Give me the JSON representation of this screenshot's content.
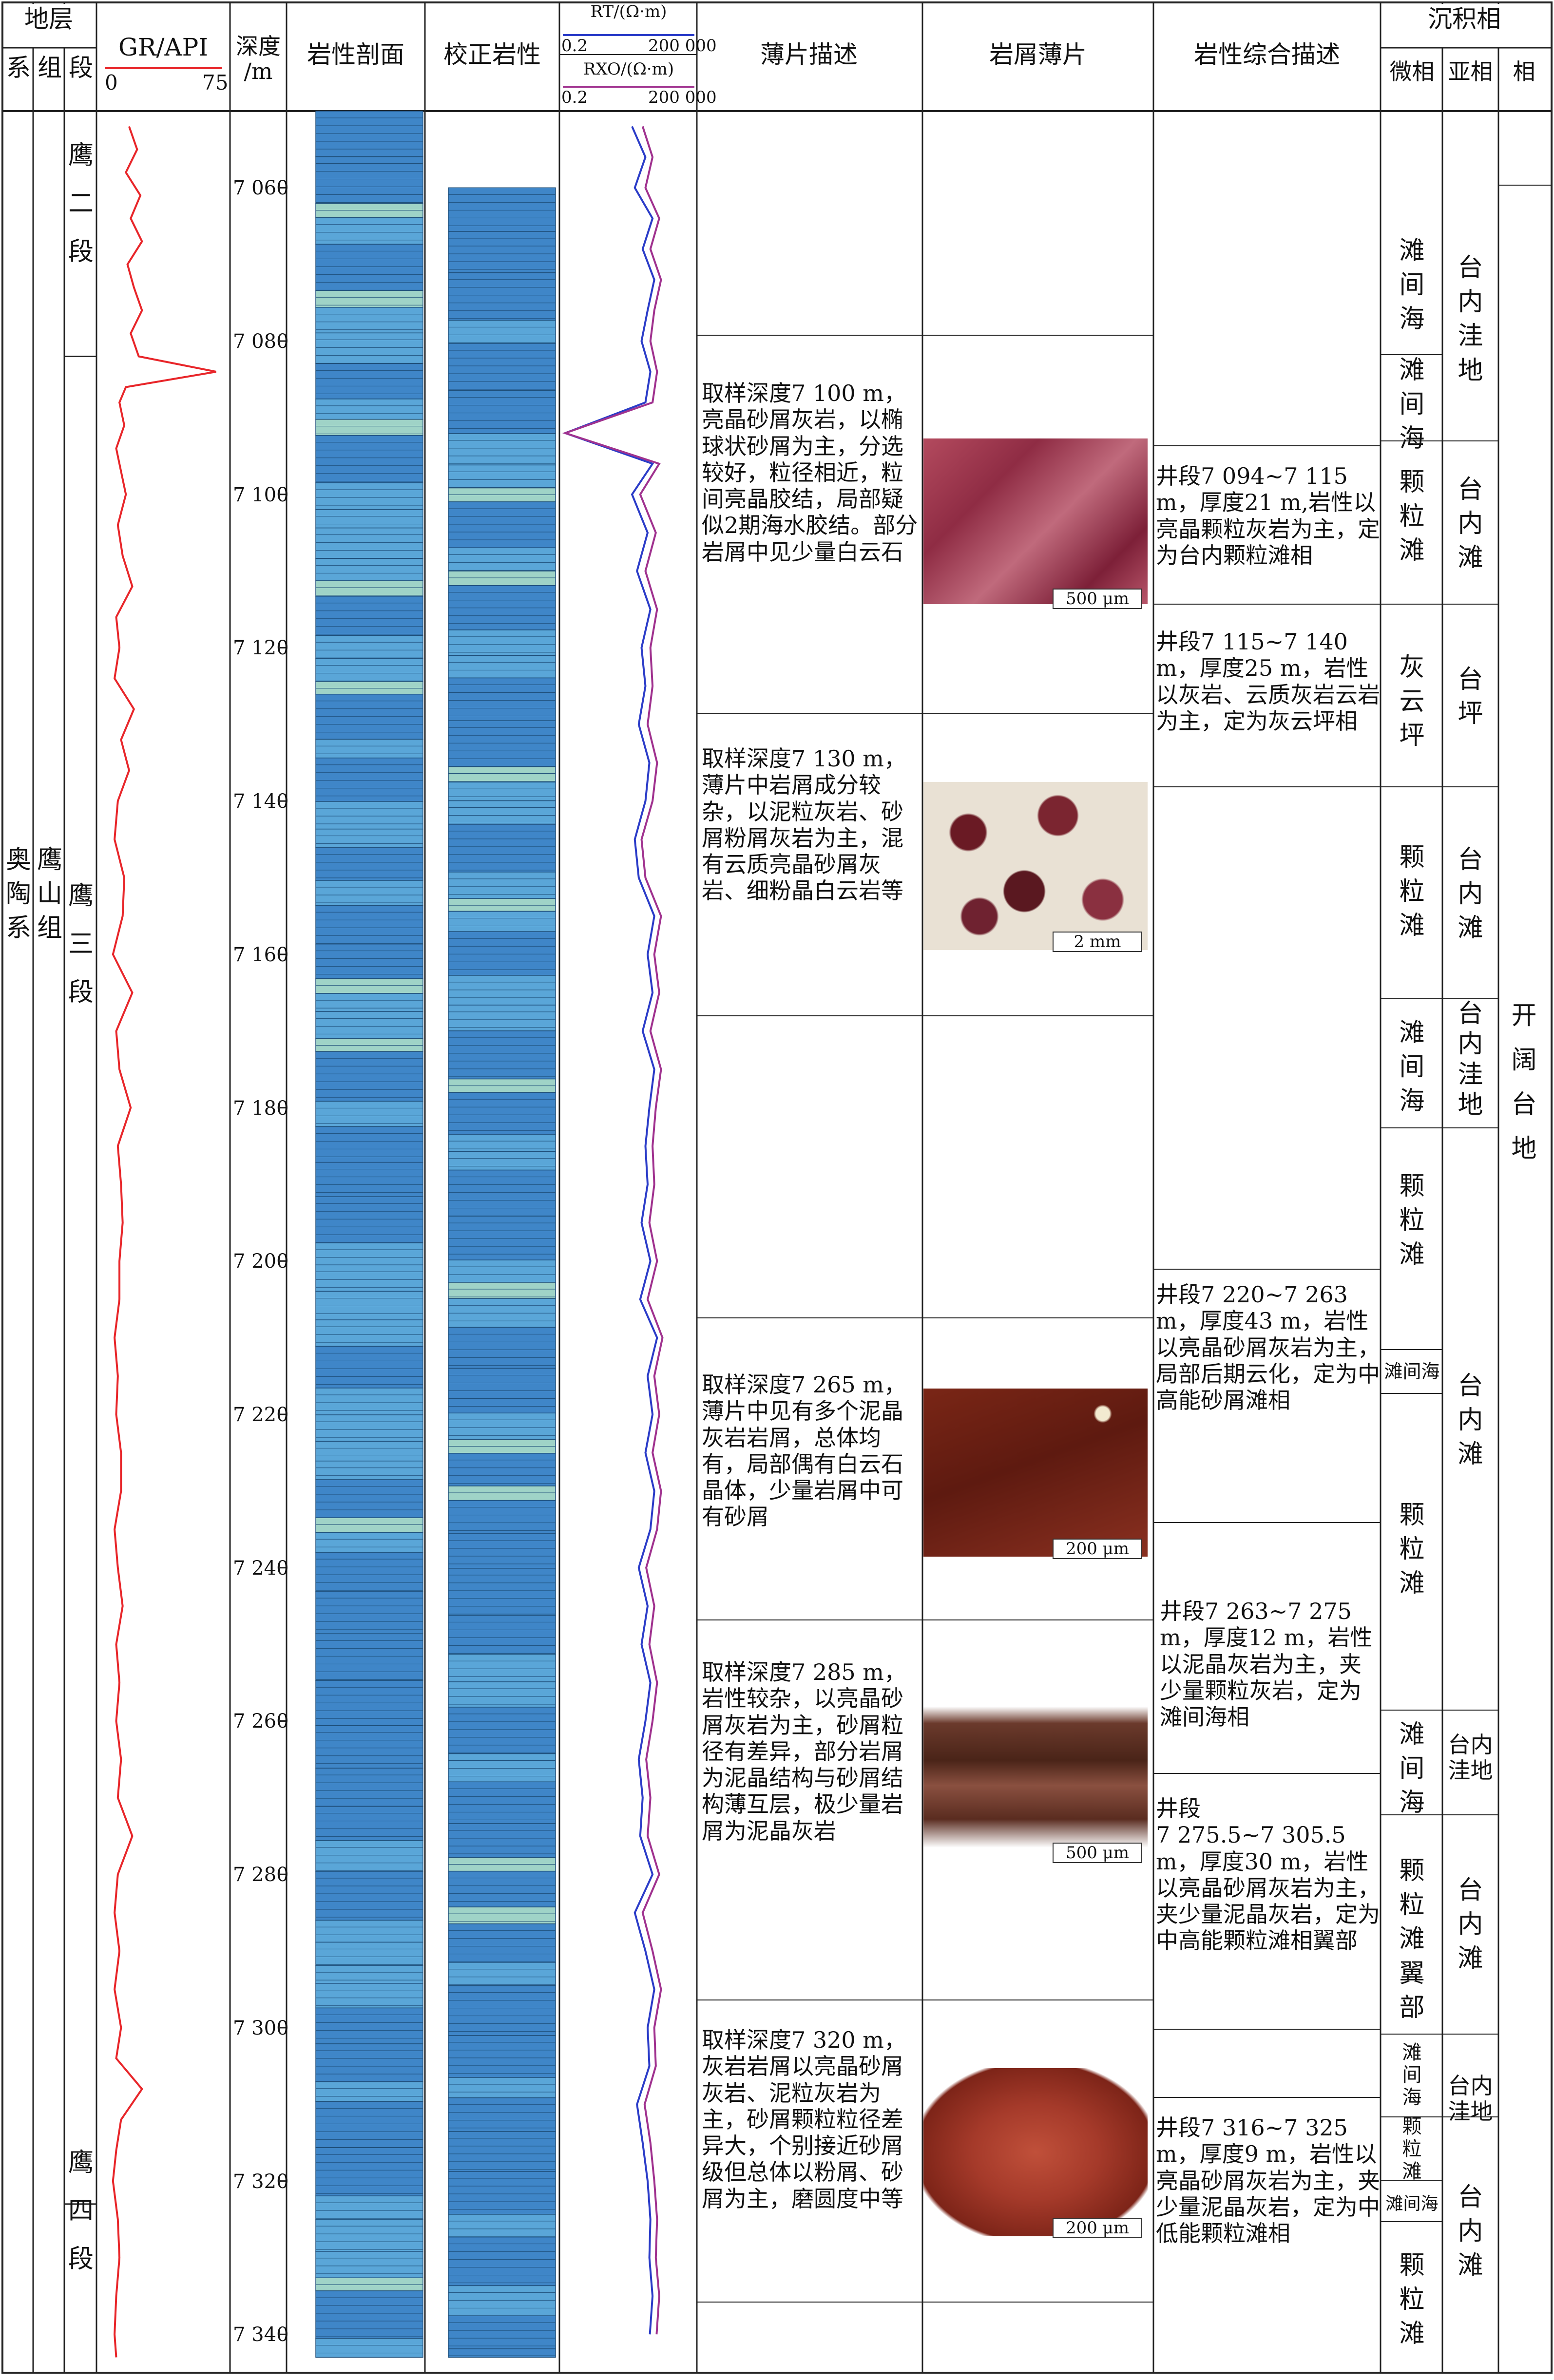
{
  "header": {
    "stratum": "地层",
    "system": "系",
    "formation": "组",
    "member": "段",
    "gr_title": "GR/API",
    "gr_min": "0",
    "gr_max": "75",
    "depth": "深度\n/m",
    "lith_profile": "岩性剖面",
    "corrected_lith": "校正岩性",
    "rt_title": "RT/(Ω·m)",
    "rt_min": "0.2",
    "rt_max": "200 000",
    "rxo_title": "RXO/(Ω·m)",
    "rxo_min": "0.2",
    "rxo_max": "200 000",
    "thin_desc": "薄片描述",
    "cuttings": "岩屑薄片",
    "lith_desc": "岩性综合描述",
    "facies_group": "沉积相",
    "microfacies": "微相",
    "subfacies": "亚相",
    "facies": "相"
  },
  "strata": {
    "system": "奥\n陶\n系",
    "formation": "鹰\n山\n组",
    "members": [
      "鹰\n二\n段",
      "鹰\n三\n段",
      "鹰\n四\n段"
    ]
  },
  "colors": {
    "gr": "#e8262a",
    "rt": "#2b3cc8",
    "rxo": "#a0328f",
    "limestone": "#5aa6d8",
    "limestone_dark": "#3f86c8",
    "dolomitic": "#9fd3c7",
    "grid": "#222222"
  },
  "chart_data": {
    "type": "line",
    "depth_axis": {
      "unit": "m",
      "range": [
        7050,
        7345
      ],
      "ticks": [
        7060,
        7080,
        7100,
        7120,
        7140,
        7160,
        7180,
        7200,
        7220,
        7240,
        7260,
        7280,
        7300,
        7320,
        7340
      ],
      "tick_labels": [
        "7 060",
        "7 080",
        "7 100",
        "7 120",
        "7 140",
        "7 160",
        "7 180",
        "7 200",
        "7 220",
        "7 240",
        "7 260",
        "7 280",
        "7 300",
        "7 320",
        "7 340"
      ]
    },
    "gr": {
      "name": "GR/API",
      "xlim": [
        0,
        75
      ],
      "depth": [
        7052,
        7055,
        7058,
        7061,
        7064,
        7067,
        7070,
        7073,
        7076,
        7079,
        7082,
        7084,
        7086,
        7088,
        7091,
        7094,
        7097,
        7100,
        7104,
        7108,
        7112,
        7116,
        7120,
        7124,
        7128,
        7132,
        7136,
        7140,
        7145,
        7150,
        7155,
        7160,
        7165,
        7170,
        7175,
        7180,
        7185,
        7190,
        7195,
        7200,
        7205,
        7210,
        7215,
        7220,
        7225,
        7230,
        7235,
        7240,
        7245,
        7250,
        7255,
        7260,
        7265,
        7270,
        7275,
        7280,
        7285,
        7290,
        7295,
        7300,
        7304,
        7308,
        7312,
        7316,
        7320,
        7325,
        7330,
        7335,
        7340,
        7343
      ],
      "values": [
        16,
        21,
        14,
        23,
        17,
        24,
        15,
        19,
        24,
        17,
        22,
        70,
        14,
        10,
        13,
        8,
        11,
        14,
        9,
        12,
        18,
        8,
        10,
        7,
        19,
        11,
        16,
        9,
        7,
        13,
        12,
        6,
        18,
        8,
        10,
        17,
        9,
        11,
        12,
        10,
        10,
        7,
        9,
        8,
        11,
        11,
        7,
        9,
        12,
        8,
        10,
        8,
        11,
        9,
        18,
        9,
        7,
        10,
        7,
        11,
        8,
        24,
        11,
        8,
        6,
        9,
        10,
        8,
        7,
        8
      ]
    },
    "rt": {
      "name": "RT/(Ω·m)",
      "xlim": [
        0.2,
        200000
      ],
      "scale": "log",
      "depth": [
        7052,
        7056,
        7060,
        7064,
        7068,
        7072,
        7076,
        7080,
        7084,
        7088,
        7092,
        7096,
        7100,
        7105,
        7110,
        7115,
        7120,
        7125,
        7130,
        7135,
        7140,
        7145,
        7150,
        7155,
        7160,
        7165,
        7170,
        7175,
        7180,
        7185,
        7190,
        7195,
        7200,
        7205,
        7210,
        7215,
        7220,
        7225,
        7230,
        7235,
        7240,
        7245,
        7250,
        7255,
        7260,
        7265,
        7270,
        7275,
        7280,
        7285,
        7290,
        7295,
        7300,
        7305,
        7310,
        7315,
        7320,
        7325,
        7330,
        7335,
        7340
      ],
      "values": [
        300,
        1200,
        400,
        2500,
        900,
        3000,
        1500,
        800,
        2000,
        1200,
        0.3,
        2500,
        300,
        1500,
        500,
        2000,
        800,
        1200,
        600,
        1800,
        1200,
        400,
        600,
        3000,
        1500,
        2500,
        900,
        3000,
        1800,
        1200,
        1500,
        800,
        2000,
        700,
        4000,
        1500,
        2500,
        1200,
        3000,
        2000,
        600,
        1500,
        800,
        2000,
        1200,
        600,
        900,
        700,
        2500,
        400,
        1200,
        3000,
        1500,
        1800,
        500,
        900,
        1500,
        2000,
        1800,
        2500,
        1900
      ]
    },
    "rxo": {
      "name": "RXO/(Ω·m)",
      "xlim": [
        0.2,
        200000
      ],
      "scale": "log",
      "depth": [
        7052,
        7056,
        7060,
        7064,
        7068,
        7072,
        7076,
        7080,
        7084,
        7088,
        7092,
        7096,
        7100,
        7105,
        7110,
        7115,
        7120,
        7125,
        7130,
        7135,
        7140,
        7145,
        7150,
        7155,
        7160,
        7165,
        7170,
        7175,
        7180,
        7185,
        7190,
        7195,
        7200,
        7205,
        7210,
        7215,
        7220,
        7225,
        7230,
        7235,
        7240,
        7245,
        7250,
        7255,
        7260,
        7265,
        7270,
        7275,
        7280,
        7285,
        7290,
        7295,
        7300,
        7305,
        7310,
        7315,
        7320,
        7325,
        7330,
        7335,
        7340
      ],
      "values": [
        900,
        2500,
        1200,
        5000,
        2000,
        6000,
        3000,
        2000,
        4000,
        2500,
        0.3,
        5000,
        700,
        3500,
        1200,
        4000,
        2000,
        2500,
        1500,
        4000,
        2500,
        800,
        1200,
        6000,
        3000,
        5000,
        2000,
        6000,
        3500,
        2500,
        3000,
        1800,
        4000,
        1500,
        7000,
        3000,
        5000,
        2500,
        6000,
        4000,
        1300,
        3000,
        1800,
        4000,
        2500,
        1300,
        2000,
        1500,
        5000,
        900,
        2500,
        6000,
        3000,
        3500,
        1100,
        2000,
        3000,
        4000,
        3500,
        5000,
        3800
      ]
    }
  },
  "thin_sections": [
    {
      "text": "取样深度7 100 m，亮晶砂屑灰岩，以椭球状砂屑为主，分选较好，粒径相近，粒间亮晶胶结，局部疑似2期海水胶结。部分岩屑中见少量白云石",
      "scale": "500 μm"
    },
    {
      "text": "取样深度7 130 m，薄片中岩屑成分较杂，以泥粒灰岩、砂屑粉屑灰岩为主，混有云质亮晶砂屑灰岩、细粉晶白云岩等",
      "scale": "2 mm"
    },
    {
      "text": "取样深度7 265 m，薄片中见有多个泥晶灰岩岩屑，总体均有，局部偶有白云石晶体，少量岩屑中可有砂屑",
      "scale": "200 μm"
    },
    {
      "text": "取样深度7 285 m，岩性较杂，以亮晶砂屑灰岩为主，砂屑粒径有差异，部分岩屑为泥晶结构与砂屑结构薄互层，极少量岩屑为泥晶灰岩",
      "scale": "500 μm"
    },
    {
      "text": "取样深度7 320 m，灰岩岩屑以亮晶砂屑灰岩、泥粒灰岩为主，砂屑颗粒粒径差异大，个别接近砂屑级但总体以粉屑、砂屑为主，磨圆度中等",
      "scale": "200 μm"
    }
  ],
  "lith_descriptions": [
    "井段7 094~7 115 m，厚度21 m,岩性以亮晶颗粒灰岩为主，定为台内颗粒滩相",
    "井段7 115~7 140 m，厚度25 m，岩性以灰岩、云质灰岩云岩为主，定为灰云坪相",
    "井段7 220~7 263 m，厚度43 m，岩性以亮晶砂屑灰岩为主，局部后期云化，定为中高能砂屑滩相",
    "井段7 263~7 275 m，厚度12 m，岩性以泥晶灰岩为主，夹少量颗粒灰岩，定为滩间海相",
    "井段\n7 275.5~7 305.5 m，厚度30 m，岩性以亮晶砂屑灰岩为主，夹少量泥晶灰岩，定为中高能颗粒滩相翼部",
    "井段7 316~7 325 m，厚度9 m，岩性以亮晶砂屑灰岩为主，夹少量泥晶灰岩，定为中低能颗粒滩相"
  ],
  "microfacies": [
    "滩\n间\n海",
    "滩\n间\n海",
    "颗\n粒\n滩",
    "灰\n云\n坪",
    "颗\n粒\n滩",
    "滩\n间\n海",
    "颗\n粒\n滩",
    "滩间海",
    "颗\n粒\n滩",
    "滩\n间\n海",
    "颗\n粒\n滩\n翼\n部",
    "滩\n间\n海",
    "颗\n粒\n滩",
    "滩间海",
    "颗\n粒\n滩"
  ],
  "subfacies": [
    "台\n内\n洼\n地",
    "台\n内\n滩",
    "台\n坪",
    "台\n内\n滩",
    "台\n内\n洼\n地",
    "台\n内\n滩",
    "台内\n洼地",
    "台\n内\n滩",
    "台内\n洼地",
    "台\n内\n滩"
  ],
  "facies": "开\n阔\n台\n地"
}
